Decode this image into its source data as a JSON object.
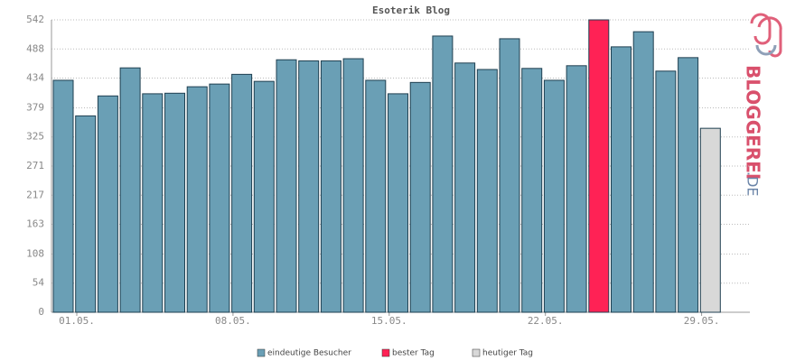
{
  "chart_data": {
    "type": "bar",
    "title": "Esoterik Blog",
    "logo": [
      "BLOGGEREI",
      ".DE"
    ],
    "categories": [
      "01.05.",
      null,
      null,
      null,
      null,
      null,
      null,
      "08.05.",
      null,
      null,
      null,
      null,
      null,
      null,
      "15.05.",
      null,
      null,
      null,
      null,
      null,
      null,
      "22.05.",
      null,
      null,
      null,
      null,
      null,
      null,
      "29.05.",
      null
    ],
    "series": [
      {
        "name": "eindeutige Besucher",
        "color": "#6a9fb5",
        "values": [
          430,
          364,
          401,
          453,
          405,
          406,
          418,
          423,
          441,
          428,
          468,
          466,
          466,
          470,
          430,
          405,
          426,
          512,
          462,
          450,
          507,
          452,
          430,
          457,
          null,
          492,
          520,
          447,
          472,
          null
        ]
      },
      {
        "name": "bester Tag",
        "color": "#ff2255",
        "values": [
          null,
          null,
          null,
          null,
          null,
          null,
          null,
          null,
          null,
          null,
          null,
          null,
          null,
          null,
          null,
          null,
          null,
          null,
          null,
          null,
          null,
          null,
          null,
          null,
          542,
          null,
          null,
          null,
          null,
          null
        ]
      },
      {
        "name": "heutiger Tag",
        "color": "#d8d8d8",
        "values": [
          null,
          null,
          null,
          null,
          null,
          null,
          null,
          null,
          null,
          null,
          null,
          null,
          null,
          null,
          null,
          null,
          null,
          null,
          null,
          null,
          null,
          null,
          null,
          null,
          null,
          null,
          null,
          null,
          null,
          341
        ]
      }
    ],
    "ylim": [
      0,
      542
    ],
    "yticks": [
      0,
      54,
      108,
      163,
      217,
      271,
      325,
      379,
      434,
      488,
      542
    ],
    "grid": true
  }
}
